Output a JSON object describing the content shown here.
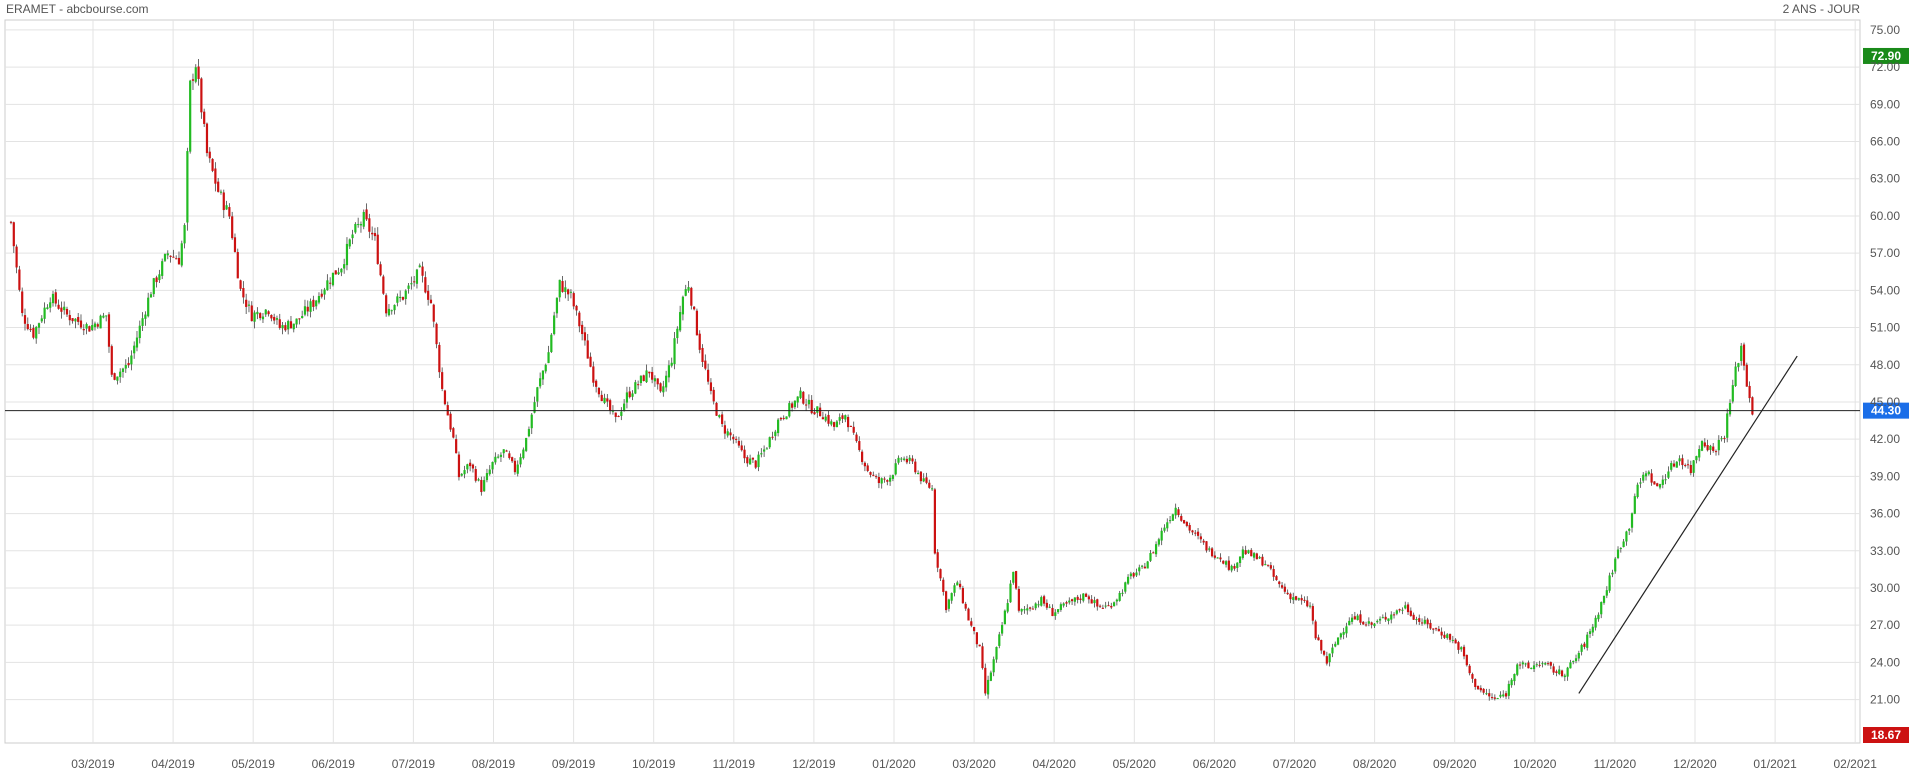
{
  "header": {
    "title": "ERAMET - abcbourse.com",
    "period": "2 ANS - JOUR"
  },
  "colors": {
    "up": "#22bb22",
    "down": "#cc1111",
    "grid": "#e3e3e3",
    "axis_text": "#555555",
    "last_badge": "#1b6ee8",
    "high_badge": "#1a8a1a",
    "low_badge": "#cc1111"
  },
  "chart_data": {
    "type": "candlestick",
    "title": "ERAMET - abcbourse.com",
    "period": "2 ANS - JOUR",
    "ylim": [
      17.5,
      75.8
    ],
    "y_ticks": [
      "75.00",
      "72.00",
      "69.00",
      "66.00",
      "63.00",
      "60.00",
      "57.00",
      "54.00",
      "51.00",
      "48.00",
      "45.00",
      "42.00",
      "39.00",
      "36.00",
      "33.00",
      "30.00",
      "27.00",
      "24.00",
      "21.00"
    ],
    "x_labels": [
      "03/2019",
      "04/2019",
      "05/2019",
      "06/2019",
      "07/2019",
      "08/2019",
      "09/2019",
      "10/2019",
      "11/2019",
      "12/2019",
      "01/2020",
      "03/2020",
      "04/2020",
      "05/2020",
      "06/2020",
      "07/2020",
      "08/2020",
      "09/2020",
      "10/2020",
      "11/2020",
      "12/2020",
      "01/2021",
      "02/2021"
    ],
    "grid": true,
    "badges": {
      "high": "72.90",
      "last": "44.30",
      "low": "18.67"
    },
    "last_price": 44.3,
    "price_path": [
      [
        0,
        59.5
      ],
      [
        4,
        52
      ],
      [
        8,
        50.5
      ],
      [
        14,
        53.5
      ],
      [
        20,
        52
      ],
      [
        28,
        51
      ],
      [
        34,
        52
      ],
      [
        36,
        47
      ],
      [
        42,
        48
      ],
      [
        50,
        54
      ],
      [
        56,
        57
      ],
      [
        60,
        56.5
      ],
      [
        62,
        59
      ],
      [
        64,
        70.5
      ],
      [
        66,
        72.3
      ],
      [
        70,
        65
      ],
      [
        74,
        62
      ],
      [
        78,
        60
      ],
      [
        82,
        54
      ],
      [
        86,
        52
      ],
      [
        92,
        52.5
      ],
      [
        96,
        51
      ],
      [
        102,
        51.5
      ],
      [
        108,
        53
      ],
      [
        114,
        55
      ],
      [
        118,
        56
      ],
      [
        122,
        58.5
      ],
      [
        126,
        59.8
      ],
      [
        130,
        58
      ],
      [
        134,
        52.5
      ],
      [
        140,
        53.5
      ],
      [
        146,
        55.5
      ],
      [
        150,
        53
      ],
      [
        154,
        46
      ],
      [
        158,
        42
      ],
      [
        160,
        39
      ],
      [
        164,
        40
      ],
      [
        168,
        38
      ],
      [
        172,
        40
      ],
      [
        176,
        41
      ],
      [
        180,
        39.5
      ],
      [
        184,
        42
      ],
      [
        188,
        46
      ],
      [
        192,
        49
      ],
      [
        194,
        52
      ],
      [
        196,
        54.5
      ],
      [
        200,
        53.5
      ],
      [
        204,
        50.5
      ],
      [
        208,
        47
      ],
      [
        212,
        45
      ],
      [
        216,
        43.5
      ],
      [
        220,
        45.5
      ],
      [
        224,
        46.5
      ],
      [
        228,
        47.5
      ],
      [
        232,
        45.5
      ],
      [
        236,
        48.5
      ],
      [
        238,
        51
      ],
      [
        240,
        53.5
      ],
      [
        242,
        54.5
      ],
      [
        246,
        49.5
      ],
      [
        250,
        45.5
      ],
      [
        254,
        43
      ],
      [
        258,
        42
      ],
      [
        262,
        40.5
      ],
      [
        266,
        40
      ],
      [
        270,
        41.5
      ],
      [
        274,
        43.5
      ],
      [
        278,
        44.5
      ],
      [
        282,
        45.5
      ],
      [
        286,
        44.5
      ],
      [
        290,
        44
      ],
      [
        294,
        43
      ],
      [
        298,
        44
      ],
      [
        302,
        41.5
      ],
      [
        306,
        39.5
      ],
      [
        310,
        38.5
      ],
      [
        314,
        39
      ],
      [
        318,
        40.5
      ],
      [
        322,
        40
      ],
      [
        326,
        38.5
      ],
      [
        329,
        38
      ],
      [
        330,
        33
      ],
      [
        334,
        28.5
      ],
      [
        338,
        30.5
      ],
      [
        342,
        27.5
      ],
      [
        346,
        25
      ],
      [
        348,
        21.5
      ],
      [
        352,
        25
      ],
      [
        356,
        29
      ],
      [
        358,
        31.5
      ],
      [
        360,
        28
      ],
      [
        364,
        28.5
      ],
      [
        368,
        29
      ],
      [
        372,
        28
      ],
      [
        376,
        28.5
      ],
      [
        380,
        29
      ],
      [
        384,
        29.5
      ],
      [
        388,
        28.5
      ],
      [
        392,
        28.5
      ],
      [
        396,
        29.5
      ],
      [
        400,
        31
      ],
      [
        404,
        31.5
      ],
      [
        408,
        33
      ],
      [
        412,
        35
      ],
      [
        416,
        36.5
      ],
      [
        420,
        35
      ],
      [
        424,
        34
      ],
      [
        428,
        33
      ],
      [
        432,
        32.5
      ],
      [
        436,
        31.5
      ],
      [
        440,
        33
      ],
      [
        444,
        32.5
      ],
      [
        448,
        32
      ],
      [
        452,
        30.5
      ],
      [
        456,
        29.5
      ],
      [
        460,
        29
      ],
      [
        464,
        28.5
      ],
      [
        466,
        26
      ],
      [
        470,
        24
      ],
      [
        474,
        26
      ],
      [
        478,
        27.5
      ],
      [
        482,
        27.5
      ],
      [
        486,
        27
      ],
      [
        490,
        27.5
      ],
      [
        494,
        28
      ],
      [
        498,
        28.5
      ],
      [
        502,
        27.5
      ],
      [
        506,
        27
      ],
      [
        510,
        26.5
      ],
      [
        514,
        26
      ],
      [
        518,
        25
      ],
      [
        522,
        22.5
      ],
      [
        526,
        21.5
      ],
      [
        530,
        21
      ],
      [
        534,
        21.5
      ],
      [
        538,
        24
      ],
      [
        542,
        23.5
      ],
      [
        546,
        24
      ],
      [
        550,
        23.5
      ],
      [
        554,
        23
      ],
      [
        558,
        24
      ],
      [
        562,
        25.5
      ],
      [
        566,
        27.5
      ],
      [
        570,
        30
      ],
      [
        574,
        33
      ],
      [
        578,
        35
      ],
      [
        580,
        37.5
      ],
      [
        584,
        39.5
      ],
      [
        588,
        38
      ],
      [
        592,
        39.5
      ],
      [
        596,
        40.5
      ],
      [
        600,
        39.5
      ],
      [
        604,
        42
      ],
      [
        608,
        41
      ],
      [
        612,
        42.5
      ],
      [
        614,
        45
      ],
      [
        616,
        47.5
      ],
      [
        618,
        49.5
      ],
      [
        620,
        46.5
      ],
      [
        622,
        44.3
      ]
    ],
    "trendline": [
      [
        560,
        21.5
      ],
      [
        638,
        48.7
      ]
    ],
    "series": [
      {
        "name": "ERAMET",
        "type": "candlestick"
      }
    ]
  }
}
